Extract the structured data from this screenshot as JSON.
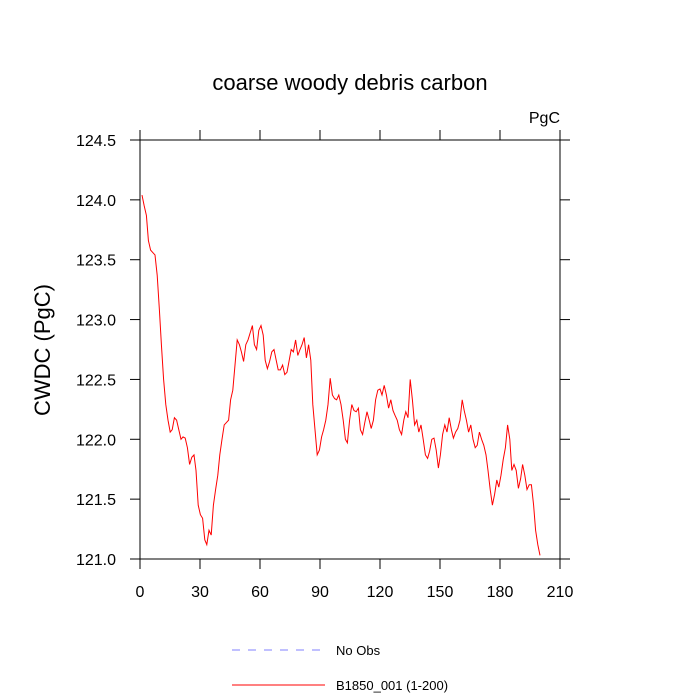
{
  "chart_data": {
    "type": "line",
    "title": "coarse woody debris carbon",
    "units": "PgC",
    "y_label": "CWDC  (PgC)",
    "xlim": [
      0,
      210
    ],
    "xticks": [
      0,
      30,
      60,
      90,
      120,
      150,
      180,
      210
    ],
    "ylim": [
      121,
      124.5
    ],
    "yticks": [
      {
        "value": 121,
        "label": "121.0"
      },
      121.5,
      {
        "value": 122,
        "label": "122.0"
      },
      122.5,
      {
        "value": 123,
        "label": "123.0"
      },
      123.5,
      {
        "value": 124,
        "label": "124.0"
      },
      124.5
    ],
    "x": [
      1.0,
      2.1,
      3.2,
      4.2,
      5.3,
      6.4,
      7.5,
      8.6,
      9.7,
      10.7,
      11.8,
      12.9,
      14.0,
      15.1,
      16.1,
      17.2,
      18.3,
      19.4,
      20.5,
      21.5,
      22.6,
      23.7,
      24.8,
      25.9,
      27.0,
      28.0,
      29.1,
      30.2,
      31.3,
      32.4,
      33.4,
      34.5,
      35.6,
      36.7,
      37.8,
      38.9,
      39.9,
      41.0,
      42.1,
      43.2,
      44.3,
      45.3,
      46.4,
      47.5,
      48.6,
      49.7,
      50.7,
      51.8,
      52.9,
      54.0,
      55.1,
      56.2,
      57.2,
      58.3,
      59.4,
      60.5,
      61.6,
      62.6,
      63.7,
      64.8,
      65.9,
      67.0,
      68.1,
      69.1,
      70.2,
      71.3,
      72.4,
      73.5,
      74.5,
      75.6,
      76.7,
      77.8,
      78.9,
      80.0,
      81.0,
      82.1,
      83.2,
      84.3,
      85.4,
      86.4,
      87.5,
      88.6,
      89.7,
      90.8,
      91.8,
      92.9,
      94.0,
      95.1,
      96.2,
      97.3,
      98.3,
      99.4,
      100.5,
      101.6,
      102.7,
      103.7,
      104.8,
      105.9,
      107.0,
      108.1,
      109.2,
      110.2,
      111.3,
      112.4,
      113.5,
      114.6,
      115.6,
      116.7,
      117.8,
      118.9,
      120.0,
      121.0,
      122.1,
      123.2,
      124.3,
      125.4,
      126.5,
      127.5,
      128.6,
      129.7,
      130.8,
      131.9,
      132.9,
      134.0,
      135.1,
      136.2,
      137.3,
      138.4,
      139.4,
      140.5,
      141.6,
      142.7,
      143.8,
      144.8,
      145.9,
      147.0,
      148.1,
      149.2,
      150.2,
      151.3,
      152.4,
      153.5,
      154.6,
      155.7,
      156.7,
      157.8,
      158.9,
      160.0,
      161.1,
      162.1,
      163.2,
      164.3,
      165.4,
      166.5,
      167.6,
      168.6,
      169.7,
      170.8,
      171.9,
      173.0,
      174.0,
      175.1,
      176.2,
      177.3,
      178.4,
      179.4,
      180.5,
      181.6,
      182.7,
      183.8,
      184.9,
      185.9,
      187.0,
      188.1,
      189.2,
      190.3,
      191.3,
      192.4,
      193.5,
      194.6,
      195.7,
      196.8,
      197.8,
      198.9,
      200.0
    ],
    "series": [
      {
        "name": "B1850_001 (1-200)",
        "color": "#ff0000",
        "values": [
          124.04,
          123.95,
          123.87,
          123.66,
          123.58,
          123.56,
          123.54,
          123.37,
          123.08,
          122.79,
          122.5,
          122.29,
          122.16,
          122.06,
          122.08,
          122.18,
          122.16,
          122.08,
          122.0,
          122.02,
          122.01,
          121.93,
          121.79,
          121.85,
          121.87,
          121.74,
          121.45,
          121.37,
          121.34,
          121.16,
          121.12,
          121.24,
          121.2,
          121.45,
          121.58,
          121.7,
          121.87,
          122.0,
          122.12,
          122.14,
          122.16,
          122.33,
          122.41,
          122.62,
          122.83,
          122.79,
          122.73,
          122.65,
          122.79,
          122.83,
          122.89,
          122.95,
          122.79,
          122.75,
          122.91,
          122.95,
          122.87,
          122.66,
          122.59,
          122.65,
          122.73,
          122.75,
          122.66,
          122.58,
          122.58,
          122.62,
          122.54,
          122.56,
          122.65,
          122.75,
          122.73,
          122.83,
          122.7,
          122.75,
          122.79,
          122.85,
          122.68,
          122.79,
          122.66,
          122.29,
          122.08,
          121.87,
          121.91,
          122.02,
          122.08,
          122.16,
          122.29,
          122.51,
          122.37,
          122.34,
          122.33,
          122.37,
          122.29,
          122.16,
          122.0,
          121.97,
          122.16,
          122.29,
          122.24,
          122.23,
          122.26,
          122.08,
          122.04,
          122.14,
          122.23,
          122.16,
          122.09,
          122.16,
          122.33,
          122.41,
          122.42,
          122.37,
          122.45,
          122.37,
          122.26,
          122.33,
          122.24,
          122.2,
          122.16,
          122.08,
          122.04,
          122.16,
          122.23,
          122.18,
          122.5,
          122.33,
          122.12,
          122.16,
          122.06,
          122.12,
          122.0,
          121.87,
          121.84,
          121.9,
          122.0,
          122.01,
          121.91,
          121.76,
          121.87,
          122.04,
          122.12,
          122.06,
          122.18,
          122.08,
          122.01,
          122.06,
          122.09,
          122.16,
          122.33,
          122.24,
          122.16,
          122.06,
          122.12,
          122.0,
          121.93,
          121.95,
          122.06,
          122.0,
          121.95,
          121.87,
          121.74,
          121.58,
          121.45,
          121.54,
          121.66,
          121.6,
          121.7,
          121.83,
          121.93,
          122.12,
          122.0,
          121.74,
          121.79,
          121.74,
          121.59,
          121.67,
          121.79,
          121.7,
          121.58,
          121.62,
          121.62,
          121.45,
          121.24,
          121.12,
          121.03
        ]
      }
    ],
    "extra_legend": [
      {
        "label": "No Obs",
        "color": "#8080ff",
        "dashed": true
      }
    ]
  }
}
